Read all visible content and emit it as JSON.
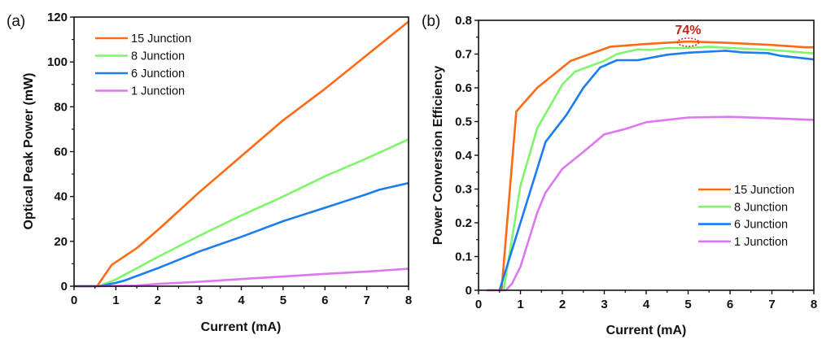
{
  "chart_data": [
    {
      "type": "line",
      "panel_label": "(a)",
      "xlabel": "Current (mA)",
      "ylabel": "Optical Peak Power (mW)",
      "xlim": [
        0,
        8
      ],
      "ylim": [
        0,
        120
      ],
      "xticks": [
        0,
        1,
        2,
        3,
        4,
        5,
        6,
        7,
        8
      ],
      "yticks": [
        0,
        20,
        40,
        60,
        80,
        100,
        120
      ],
      "grid": false,
      "legend_placement": "top-left",
      "series": [
        {
          "name": "15 Junction",
          "color": "#ff6a13",
          "points": [
            [
              0,
              0
            ],
            [
              0.55,
              0
            ],
            [
              0.9,
              9.5
            ],
            [
              1.5,
              17
            ],
            [
              2,
              25
            ],
            [
              3,
              42
            ],
            [
              4,
              58
            ],
            [
              5,
              74
            ],
            [
              6,
              88
            ],
            [
              7,
              103
            ],
            [
              8,
              118
            ]
          ]
        },
        {
          "name": "8 Junction",
          "color": "#7ef56a",
          "points": [
            [
              0,
              0
            ],
            [
              0.6,
              0
            ],
            [
              1,
              3
            ],
            [
              2,
              13
            ],
            [
              3,
              22.5
            ],
            [
              4,
              31.5
            ],
            [
              5,
              40
            ],
            [
              6,
              49
            ],
            [
              7,
              57
            ],
            [
              8,
              65.5
            ]
          ]
        },
        {
          "name": "6 Junction",
          "color": "#1a7ef0",
          "points": [
            [
              0,
              0
            ],
            [
              0.6,
              0
            ],
            [
              1,
              1.5
            ],
            [
              1.2,
              2.5
            ],
            [
              2,
              8
            ],
            [
              3,
              15.5
            ],
            [
              4,
              22
            ],
            [
              5,
              29
            ],
            [
              6,
              35
            ],
            [
              6.5,
              38
            ],
            [
              7,
              41
            ],
            [
              7.3,
              43
            ],
            [
              8,
              46
            ]
          ]
        },
        {
          "name": "1 Junction",
          "color": "#dd77f0",
          "points": [
            [
              0,
              0
            ],
            [
              0.6,
              0
            ],
            [
              1.5,
              0.3
            ],
            [
              2,
              1
            ],
            [
              3,
              2
            ],
            [
              4,
              3.2
            ],
            [
              5,
              4.3
            ],
            [
              6,
              5.5
            ],
            [
              7,
              6.5
            ],
            [
              8,
              7.8
            ]
          ]
        }
      ]
    },
    {
      "type": "line",
      "panel_label": "(b)",
      "xlabel": "Current (mA)",
      "ylabel": "Power Conversion Efficiency",
      "xlim": [
        0,
        8
      ],
      "ylim": [
        0,
        0.8
      ],
      "xticks": [
        0,
        1,
        2,
        3,
        4,
        5,
        6,
        7,
        8
      ],
      "yticks": [
        0,
        0.1,
        0.2,
        0.3,
        0.4,
        0.5,
        0.6,
        0.7,
        0.8
      ],
      "grid": false,
      "legend_placement": "bottom-right",
      "annotation": {
        "text": "74%",
        "x": 5,
        "y": 0.735,
        "color": "#c0261a"
      },
      "series": [
        {
          "name": "15 Junction",
          "color": "#ff6a13",
          "points": [
            [
              0.2,
              0
            ],
            [
              0.55,
              0
            ],
            [
              0.9,
              0.53
            ],
            [
              1.4,
              0.6
            ],
            [
              2.2,
              0.68
            ],
            [
              3.15,
              0.722
            ],
            [
              4,
              0.73
            ],
            [
              5,
              0.737
            ],
            [
              6,
              0.733
            ],
            [
              7,
              0.727
            ],
            [
              7.8,
              0.72
            ],
            [
              8,
              0.72
            ]
          ]
        },
        {
          "name": "8 Junction",
          "color": "#7ef56a",
          "points": [
            [
              0.6,
              0
            ],
            [
              1,
              0.31
            ],
            [
              1.4,
              0.48
            ],
            [
              2,
              0.61
            ],
            [
              2.3,
              0.648
            ],
            [
              3,
              0.68
            ],
            [
              3.3,
              0.7
            ],
            [
              3.8,
              0.714
            ],
            [
              4.1,
              0.712
            ],
            [
              4.5,
              0.718
            ],
            [
              5,
              0.718
            ],
            [
              5.5,
              0.722
            ],
            [
              6,
              0.718
            ],
            [
              7,
              0.712
            ],
            [
              8,
              0.702
            ]
          ]
        },
        {
          "name": "6 Junction",
          "color": "#1a7ef0",
          "points": [
            [
              0.5,
              0
            ],
            [
              1,
              0.2
            ],
            [
              1.6,
              0.44
            ],
            [
              2.1,
              0.52
            ],
            [
              2.5,
              0.6
            ],
            [
              2.9,
              0.66
            ],
            [
              3.3,
              0.682
            ],
            [
              3.8,
              0.682
            ],
            [
              4.5,
              0.698
            ],
            [
              5,
              0.704
            ],
            [
              5.9,
              0.71
            ],
            [
              6.3,
              0.705
            ],
            [
              6.9,
              0.703
            ],
            [
              7.2,
              0.695
            ],
            [
              8,
              0.684
            ]
          ]
        },
        {
          "name": "1 Junction",
          "color": "#dd77f0",
          "points": [
            [
              0.2,
              0
            ],
            [
              0.65,
              0
            ],
            [
              0.8,
              0.02
            ],
            [
              1,
              0.07
            ],
            [
              1.4,
              0.23
            ],
            [
              1.6,
              0.29
            ],
            [
              2,
              0.36
            ],
            [
              2.5,
              0.41
            ],
            [
              3,
              0.462
            ],
            [
              3.5,
              0.478
            ],
            [
              4,
              0.498
            ],
            [
              5,
              0.512
            ],
            [
              6,
              0.514
            ],
            [
              7,
              0.51
            ],
            [
              8,
              0.505
            ]
          ]
        }
      ]
    }
  ]
}
